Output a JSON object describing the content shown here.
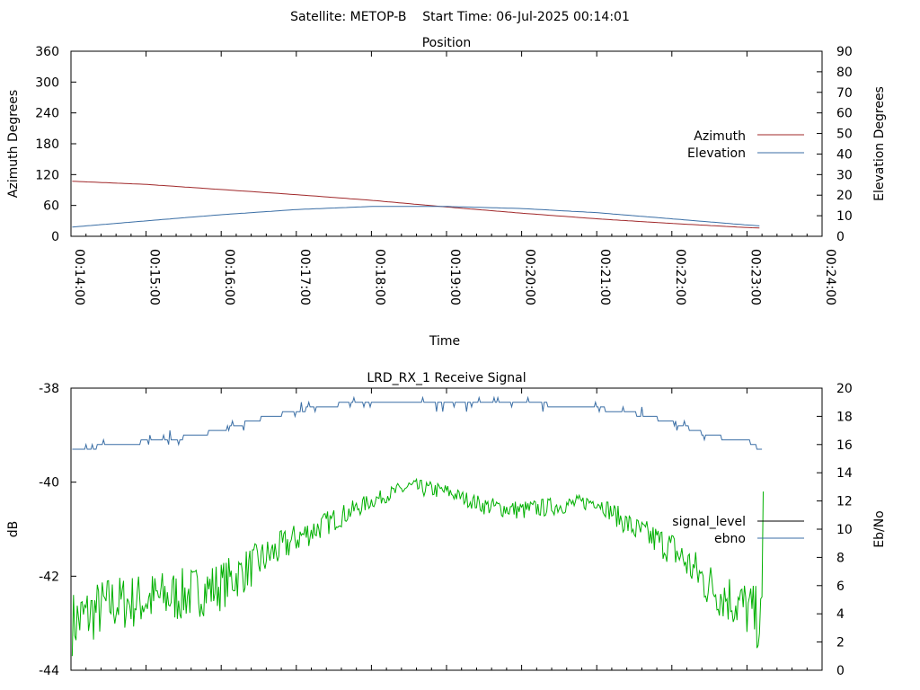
{
  "header": {
    "title": "Satellite: METOP-B    Start Time: 06-Jul-2025 00:14:01"
  },
  "chart_data": [
    {
      "type": "line",
      "title": "Position",
      "xlabel": "Time",
      "ylabel": "Azimuth Degrees",
      "y2label": "Elevation Degrees",
      "x_range": [
        "00:14:00",
        "00:24:00"
      ],
      "x_ticks": [
        "00:14:00",
        "00:15:00",
        "00:16:00",
        "00:17:00",
        "00:18:00",
        "00:19:00",
        "00:20:00",
        "00:21:00",
        "00:22:00",
        "00:23:00",
        "00:24:00"
      ],
      "ylim": [
        0,
        360
      ],
      "y_ticks": [
        "0",
        "60",
        "120",
        "180",
        "240",
        "300",
        "360"
      ],
      "y2lim": [
        0,
        90
      ],
      "y2_ticks": [
        "0",
        "10",
        "20",
        "30",
        "40",
        "50",
        "60",
        "70",
        "80",
        "90"
      ],
      "legend_position": "right",
      "series": [
        {
          "name": "Azimuth",
          "axis": "left",
          "color": "#a0282a",
          "x": [
            "00:14:01",
            "00:15:00",
            "00:16:00",
            "00:17:00",
            "00:18:00",
            "00:19:00",
            "00:20:00",
            "00:21:00",
            "00:22:00",
            "00:23:00",
            "00:23:12"
          ],
          "values": [
            107,
            101,
            91,
            81,
            70,
            57,
            45,
            34,
            25,
            17,
            16
          ]
        },
        {
          "name": "Elevation",
          "axis": "right",
          "color": "#3a6ea5",
          "x": [
            "00:14:01",
            "00:15:00",
            "00:16:00",
            "00:17:00",
            "00:18:00",
            "00:19:00",
            "00:20:00",
            "00:21:00",
            "00:22:00",
            "00:23:00",
            "00:23:12"
          ],
          "values": [
            4.5,
            7.5,
            10.5,
            13,
            14.5,
            14.5,
            13.5,
            11.5,
            8.5,
            5.5,
            5
          ]
        }
      ]
    },
    {
      "type": "line",
      "title": "LRD_RX_1 Receive Signal",
      "ylabel": "dB",
      "y2label": "Eb/No",
      "x_range": [
        "00:14:00",
        "00:24:00"
      ],
      "ylim": [
        -44,
        -38
      ],
      "y_ticks": [
        "-44",
        "-42",
        "-40",
        "-38"
      ],
      "y2lim": [
        0,
        20
      ],
      "y2_ticks": [
        "0",
        "2",
        "4",
        "6",
        "8",
        "10",
        "12",
        "14",
        "16",
        "18",
        "20"
      ],
      "legend_position": "right",
      "series": [
        {
          "name": "signal_level",
          "axis": "left",
          "color": "#00b000",
          "x": [
            "00:14:01",
            "00:14:30",
            "00:15:00",
            "00:15:30",
            "00:16:00",
            "00:16:30",
            "00:17:00",
            "00:17:30",
            "00:18:00",
            "00:18:30",
            "00:19:00",
            "00:19:30",
            "00:20:00",
            "00:20:30",
            "00:21:00",
            "00:21:30",
            "00:22:00",
            "00:22:30",
            "00:23:00",
            "00:23:12"
          ],
          "values": [
            -43.0,
            -42.6,
            -42.5,
            -42.4,
            -42.2,
            -41.7,
            -41.2,
            -40.8,
            -40.4,
            -40.1,
            -40.2,
            -40.5,
            -40.6,
            -40.5,
            -40.4,
            -41.0,
            -41.4,
            -42.2,
            -42.7,
            -43.0
          ]
        },
        {
          "name": "ebno",
          "axis": "right",
          "color": "#3a6ea5",
          "x": [
            "00:14:01",
            "00:14:30",
            "00:15:00",
            "00:15:30",
            "00:16:00",
            "00:16:30",
            "00:17:00",
            "00:17:30",
            "00:18:00",
            "00:18:30",
            "00:19:00",
            "00:19:30",
            "00:20:00",
            "00:20:30",
            "00:21:00",
            "00:21:30",
            "00:22:00",
            "00:22:30",
            "00:23:00",
            "00:23:12"
          ],
          "values": [
            15.5,
            16.0,
            16.2,
            16.5,
            17.0,
            17.8,
            18.4,
            18.8,
            19.1,
            19.0,
            18.9,
            18.9,
            18.9,
            18.8,
            18.6,
            18.2,
            17.6,
            16.6,
            16.3,
            15.6
          ]
        }
      ]
    }
  ]
}
